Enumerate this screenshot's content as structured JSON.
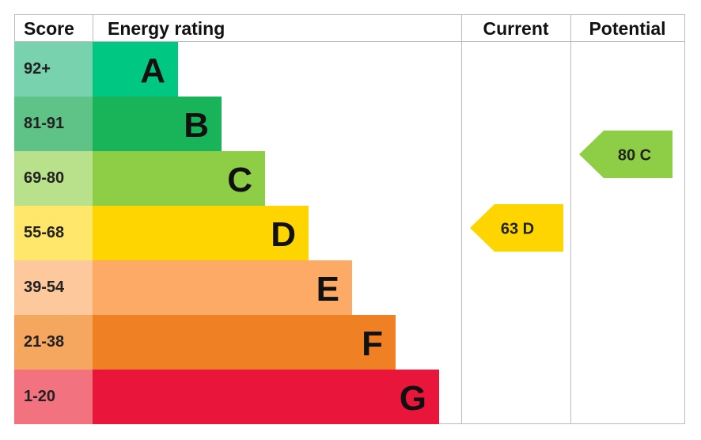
{
  "header": {
    "score": "Score",
    "rating": "Energy rating",
    "current": "Current",
    "potential": "Potential"
  },
  "bands": [
    {
      "score": "92+",
      "letter": "A",
      "color": "#00c781",
      "tint": "#78d2ae"
    },
    {
      "score": "81-91",
      "letter": "B",
      "color": "#19b459",
      "tint": "#5fc387"
    },
    {
      "score": "69-80",
      "letter": "C",
      "color": "#8dce46",
      "tint": "#b9e18c"
    },
    {
      "score": "55-68",
      "letter": "D",
      "color": "#ffd500",
      "tint": "#ffe76b"
    },
    {
      "score": "39-54",
      "letter": "E",
      "color": "#fcaa65",
      "tint": "#fdc89b"
    },
    {
      "score": "21-38",
      "letter": "F",
      "color": "#ef8023",
      "tint": "#f5a65f"
    },
    {
      "score": "1-20",
      "letter": "G",
      "color": "#e9153b",
      "tint": "#f2727f"
    }
  ],
  "current": {
    "label": "63 D",
    "color": "#ffd500"
  },
  "potential": {
    "label": "80 C",
    "color": "#8dce46"
  }
}
